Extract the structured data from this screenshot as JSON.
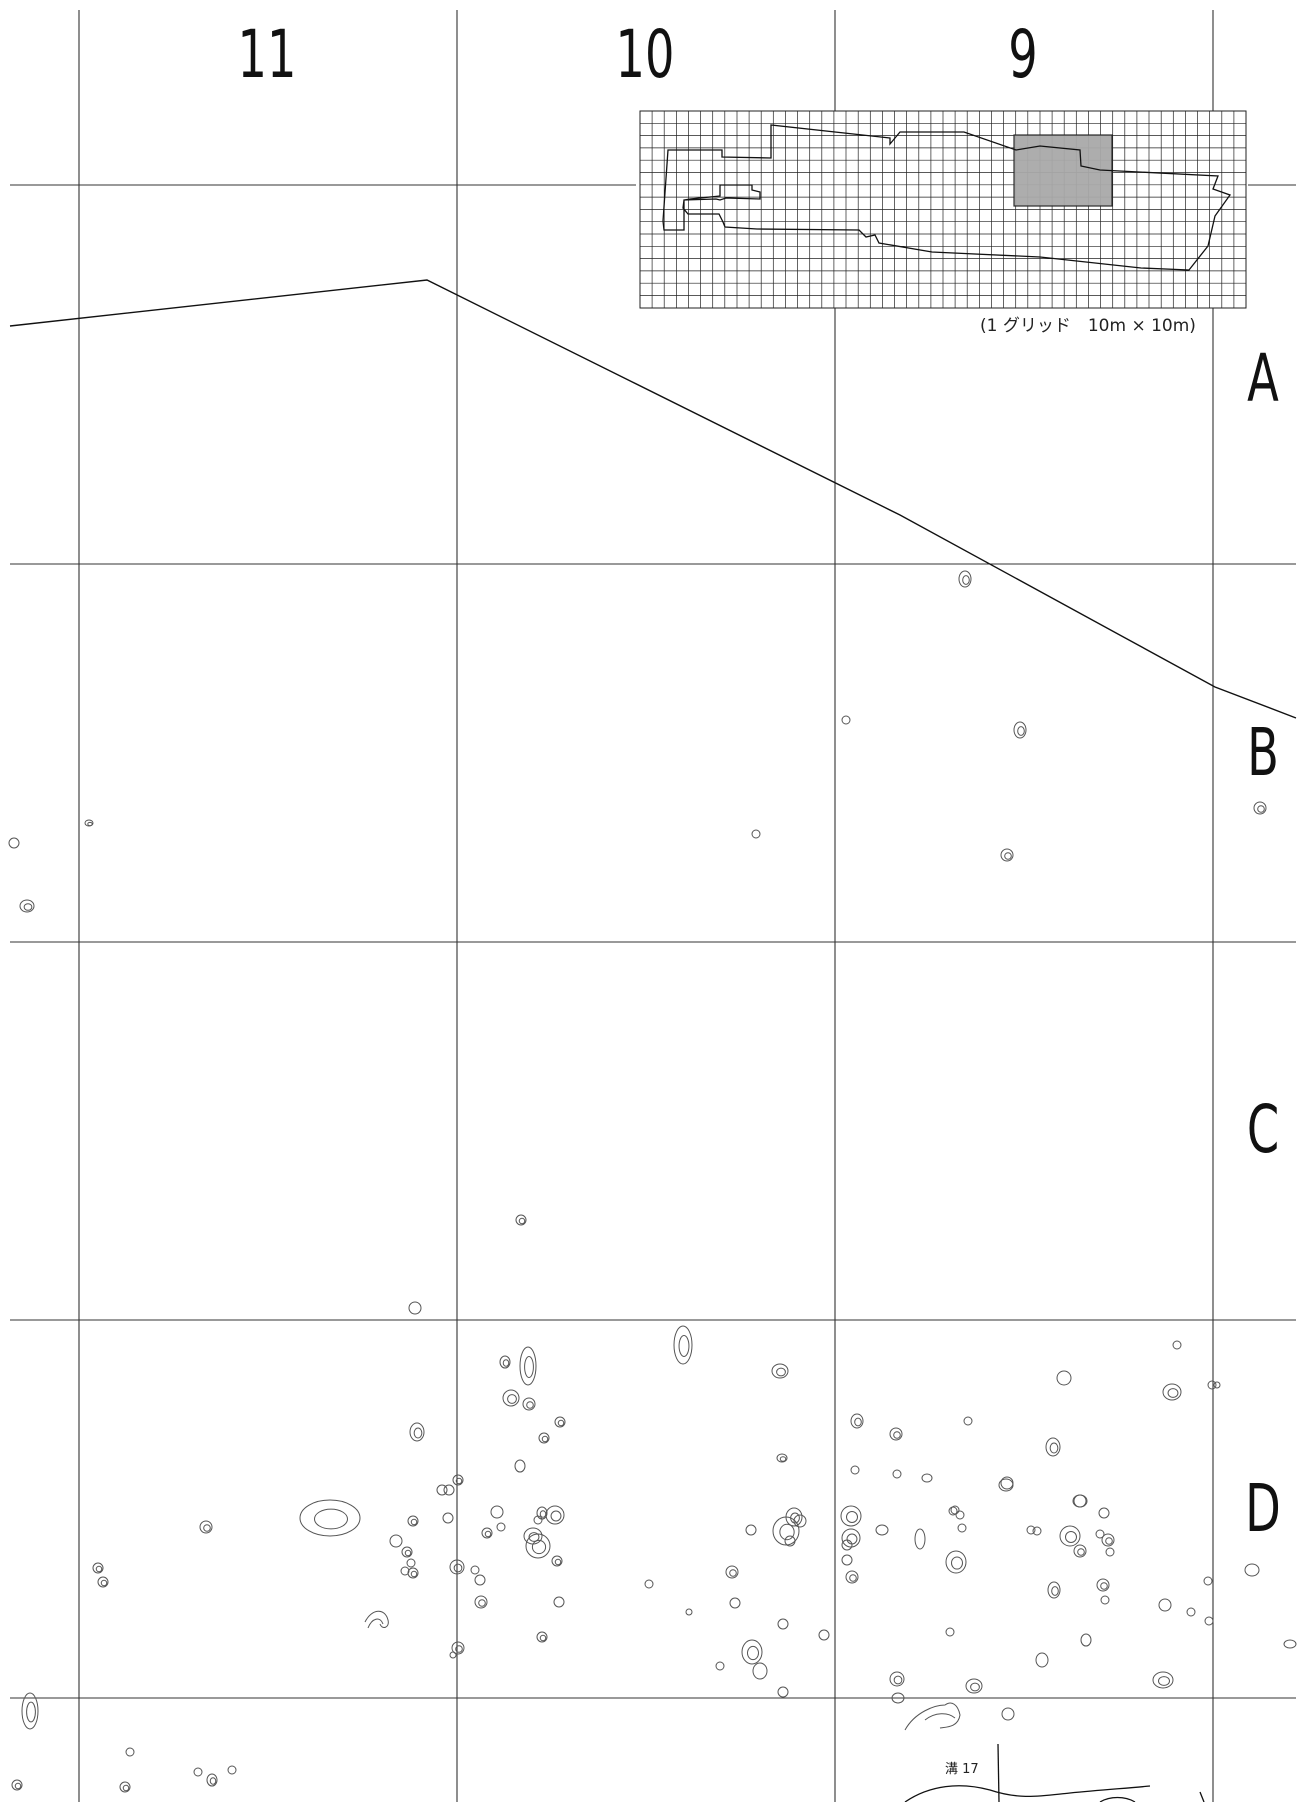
{
  "grid": {
    "column_labels": [
      "11",
      "10",
      "9"
    ],
    "row_labels": [
      "A",
      "B",
      "C",
      "D"
    ]
  },
  "key_map": {
    "caption": "(1 グリッド　10m × 10m)",
    "highlight_color": "#a9a9a9"
  },
  "features": {
    "ditch_label": "溝 17"
  },
  "colors": {
    "line": "#222222",
    "feature": "#555555"
  }
}
